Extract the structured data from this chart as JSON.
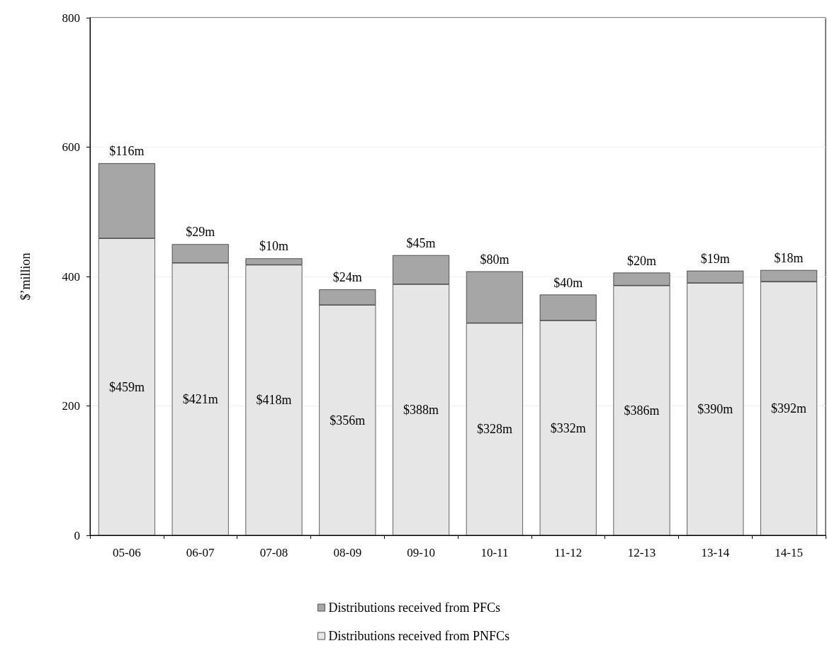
{
  "chart_data": {
    "type": "bar",
    "ylabel": "$’million",
    "categories": [
      "05-06",
      "06-07",
      "07-08",
      "08-09",
      "09-10",
      "10-11",
      "11-12",
      "12-13",
      "13-14",
      "14-15"
    ],
    "stacked": true,
    "ylim": [
      0,
      800
    ],
    "yticks": [
      0,
      200,
      400,
      600,
      800
    ],
    "grid": "y",
    "legend": "bottom",
    "series": [
      {
        "name": "Distributions received from PNFCs",
        "color": "#e6e6e6",
        "values": [
          459,
          421,
          418,
          356,
          388,
          328,
          332,
          386,
          390,
          392
        ],
        "value_labels": [
          "$459m",
          "$421m",
          "$418m",
          "$356m",
          "$388m",
          "$328m",
          "$332m",
          "$386m",
          "$390m",
          "$392m"
        ]
      },
      {
        "name": "Distributions received from PFCs",
        "color": "#a6a6a6",
        "values": [
          116,
          29,
          10,
          24,
          45,
          80,
          40,
          20,
          19,
          18
        ],
        "value_labels": [
          "$116m",
          "$29m",
          "$10m",
          "$24m",
          "$45m",
          "$80m",
          "$40m",
          "$20m",
          "$19m",
          "$18m"
        ]
      }
    ]
  }
}
